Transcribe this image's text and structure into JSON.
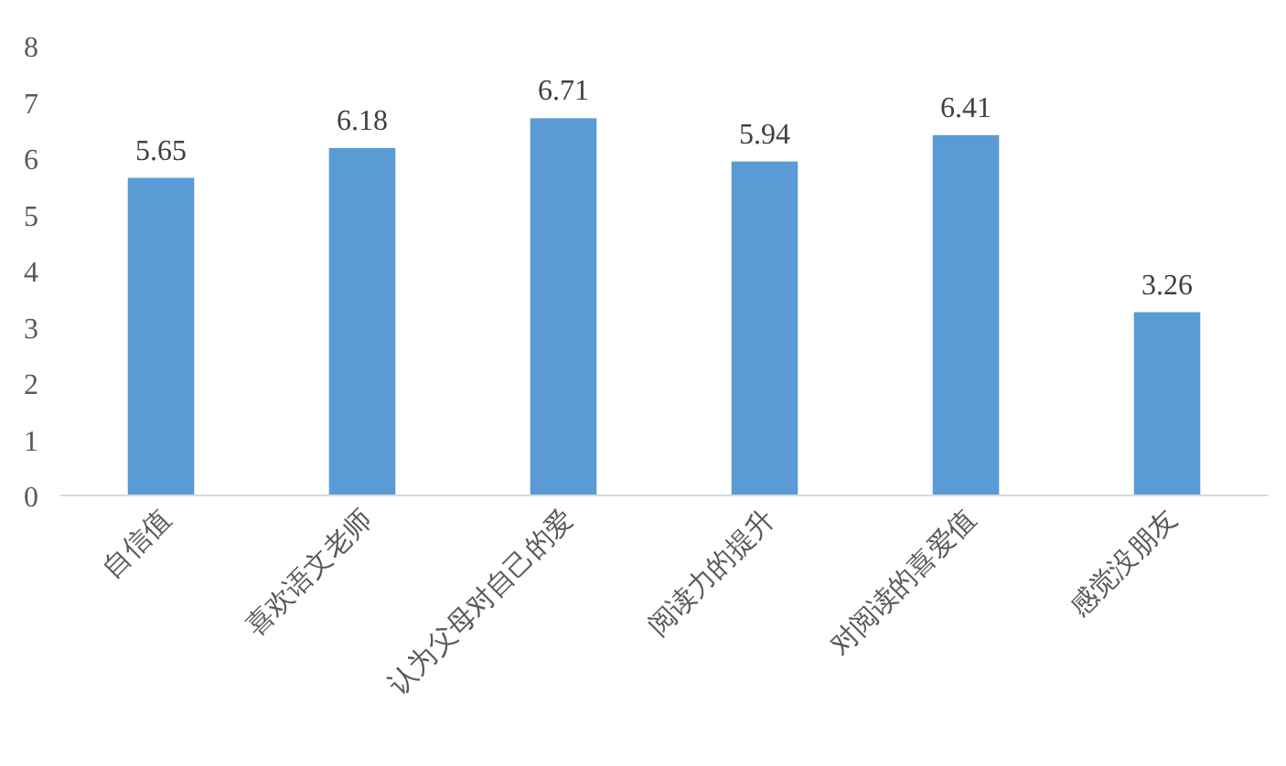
{
  "chart_data": {
    "type": "bar",
    "categories": [
      "自信值",
      "喜欢语文老师",
      "认为父母对自己的爱",
      "阅读力的提升",
      "对阅读的喜爱值",
      "感觉没朋友"
    ],
    "values": [
      5.65,
      6.18,
      6.71,
      5.94,
      6.41,
      3.26
    ],
    "color": "#5b9bd5",
    "ylim": [
      0,
      8
    ],
    "yticks": [
      0,
      1,
      2,
      3,
      4,
      5,
      6,
      7,
      8
    ],
    "data_labels": true,
    "grid": false
  }
}
